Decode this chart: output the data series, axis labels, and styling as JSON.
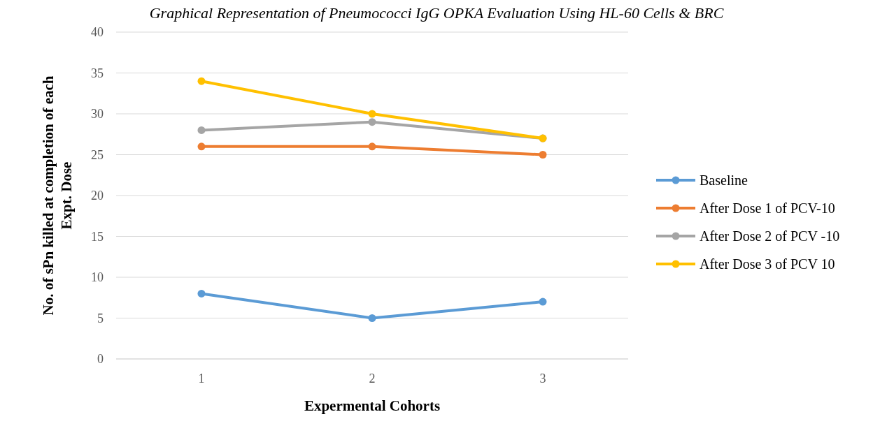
{
  "chart_data": {
    "type": "line",
    "title": "Graphical Representation of Pneumococci IgG OPKA Evaluation Using HL-60 Cells & BRC",
    "xlabel": "Expermental Cohorts",
    "ylabel": "No. of sPn killed at completion of each Expt. Dose",
    "categories": [
      "1",
      "2",
      "3"
    ],
    "series": [
      {
        "name": "Baseline",
        "color": "#5b9bd5",
        "values": [
          8,
          5,
          7
        ]
      },
      {
        "name": "After Dose 1 of PCV-10",
        "color": "#ed7d31",
        "values": [
          26,
          26,
          25
        ]
      },
      {
        "name": "After Dose 2 of PCV -10",
        "color": "#a5a5a5",
        "values": [
          28,
          29,
          27
        ]
      },
      {
        "name": "After Dose 3 of PCV 10",
        "color": "#ffc000",
        "values": [
          34,
          30,
          27
        ]
      }
    ],
    "ylim": [
      0,
      40
    ],
    "yticks": [
      0,
      5,
      10,
      15,
      20,
      25,
      30,
      35,
      40
    ],
    "grid": "y",
    "legend": "right",
    "marker": "circle",
    "line_style": "solid"
  }
}
